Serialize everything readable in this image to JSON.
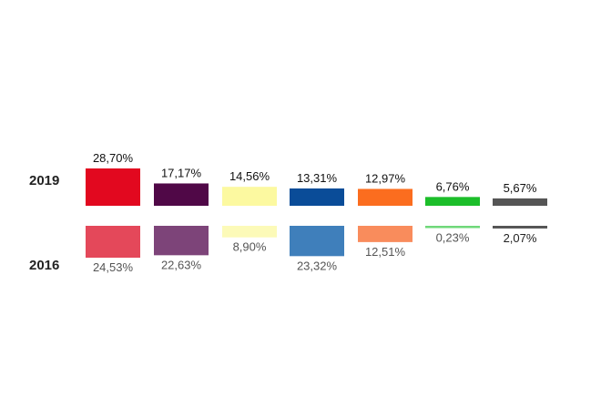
{
  "chart_data": {
    "type": "bar",
    "categories": [
      "",
      "",
      "",
      "",
      "",
      "",
      ""
    ],
    "series": [
      {
        "name": "2019",
        "values": [
          28.7,
          17.17,
          14.56,
          13.31,
          12.97,
          6.76,
          5.67
        ],
        "labels": [
          "28,70%",
          "17,17%",
          "14,56%",
          "13,31%",
          "12,97%",
          "6,76%",
          "5,67%"
        ],
        "colors": [
          "#e2081f",
          "#500847",
          "#fcf9a0",
          "#0a4c98",
          "#fb6d1f",
          "#1cbe2a",
          "#555555"
        ]
      },
      {
        "name": "2016",
        "values": [
          24.53,
          22.63,
          8.9,
          23.32,
          12.51,
          0.23,
          2.07
        ],
        "labels": [
          "24,53%",
          "22,63%",
          "8,90%",
          "23,32%",
          "12,51%",
          "0,23%",
          "2,07%"
        ],
        "colors": [
          "#e4485a",
          "#7d4479",
          "#fcfab8",
          "#3f7fbb",
          "#f98c5c",
          "#6fd87a",
          "#555555"
        ]
      }
    ],
    "row_labels": [
      "2019",
      "2016"
    ],
    "orientation": "mirrored-vertical",
    "grid": false,
    "legend": "none"
  }
}
